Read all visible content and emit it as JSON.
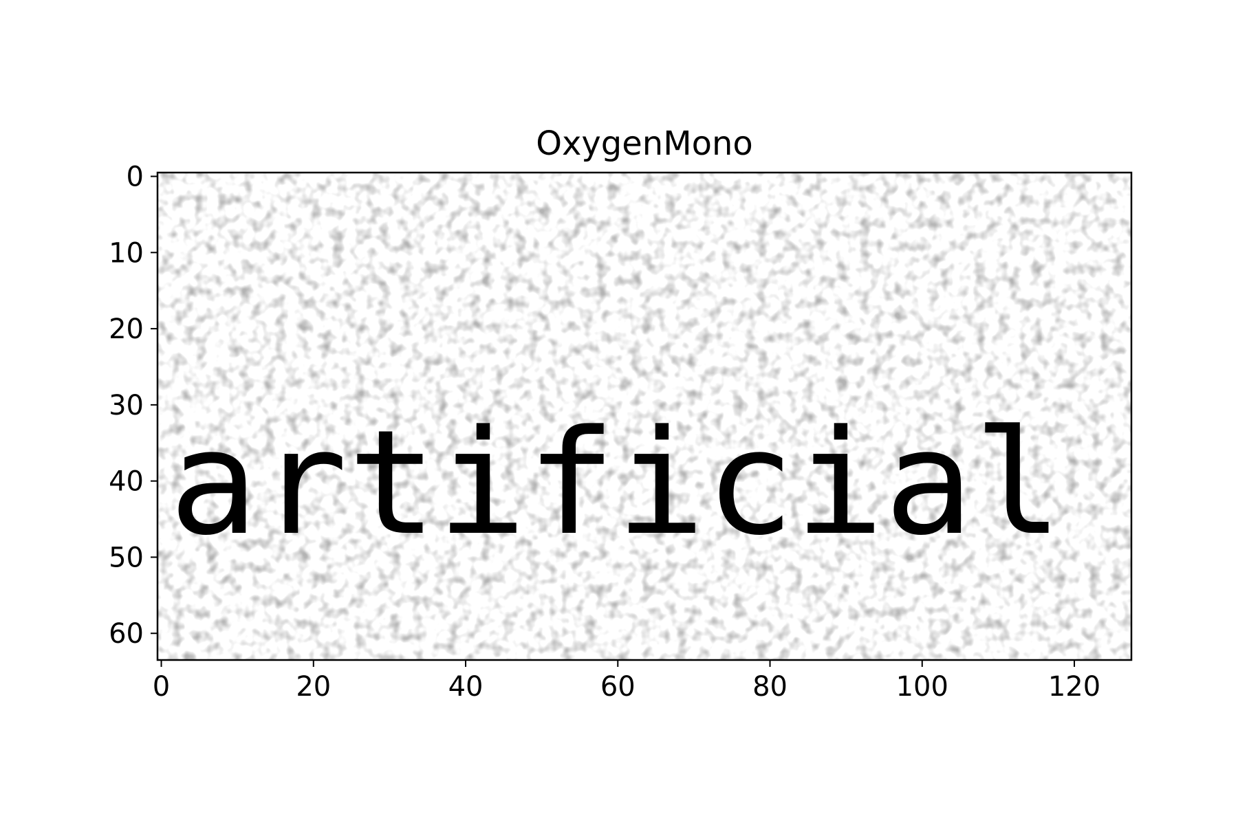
{
  "chart_data": {
    "type": "heatmap",
    "title": "OxygenMono",
    "image_text": "artificial",
    "colormap": "gray_r",
    "background": "white with light grey speckle noise",
    "xlim": [
      -0.5,
      127.5
    ],
    "ylim": [
      63.5,
      -0.5
    ],
    "x_ticks": [
      0,
      20,
      40,
      60,
      80,
      100,
      120
    ],
    "y_ticks": [
      0,
      10,
      20,
      30,
      40,
      50,
      60
    ],
    "xlabel": "",
    "ylabel": "",
    "grid": false,
    "legend": "none"
  }
}
